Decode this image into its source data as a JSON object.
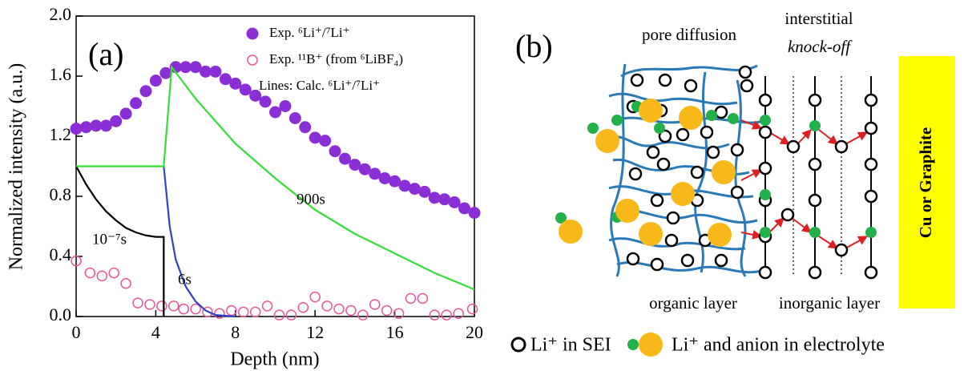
{
  "chart_data": {
    "type": "scatter",
    "panel_label": "(a)",
    "x_label": "Depth (nm)",
    "y_label": "Normalized intensity (a.u.)",
    "xlim": [
      0,
      20
    ],
    "xticks": [
      0,
      4,
      8,
      12,
      16,
      20
    ],
    "ylim": [
      0,
      2
    ],
    "yticks": [
      {
        "value": 0,
        "label": "0.0"
      },
      0.4,
      0.8,
      1.2,
      1.6,
      {
        "value": 2,
        "label": "2.0"
      }
    ],
    "legend_note": "Lines: Calc. ⁶Li⁺/⁷Li⁺",
    "series": [
      {
        "name": "Exp. ⁶Li⁺/⁷Li⁺",
        "style": "filled",
        "color": "#8a2fd6",
        "x": [
          0,
          0.5,
          1,
          1.5,
          2,
          2.5,
          3,
          3.5,
          4,
          4.5,
          5,
          5.5,
          6,
          6.5,
          7,
          7.5,
          8,
          8.5,
          9,
          9.5,
          10,
          10.5,
          11,
          11.5,
          12,
          12.5,
          13,
          13.5,
          14,
          14.5,
          15,
          15.5,
          16,
          16.5,
          17,
          17.5,
          18,
          18.5,
          19,
          19.5,
          20
        ],
        "values": [
          1.25,
          1.26,
          1.27,
          1.27,
          1.3,
          1.35,
          1.42,
          1.5,
          1.57,
          1.62,
          1.66,
          1.66,
          1.66,
          1.63,
          1.63,
          1.58,
          1.55,
          1.51,
          1.47,
          1.43,
          1.36,
          1.4,
          1.32,
          1.26,
          1.19,
          1.17,
          1.1,
          1.05,
          1.01,
          0.98,
          0.95,
          0.92,
          0.9,
          0.87,
          0.85,
          0.83,
          0.79,
          0.78,
          0.76,
          0.72,
          0.69
        ]
      },
      {
        "name": "Exp. ¹¹B⁺ (from ⁶LiBF₄)",
        "style": "open",
        "color": "#e8559a",
        "x": [
          0,
          0.7,
          1.3,
          1.9,
          2.5,
          3.1,
          3.7,
          4.3,
          4.9,
          5.4,
          6.0,
          6.6,
          7.2,
          7.8,
          8.4,
          9.0,
          9.6,
          10.2,
          10.8,
          11.4,
          12.0,
          12.6,
          13.2,
          13.8,
          14.4,
          15.0,
          15.6,
          16.2,
          16.8,
          17.4,
          18.0,
          18.6,
          19.2,
          19.9
        ],
        "values": [
          0.37,
          0.29,
          0.27,
          0.29,
          0.22,
          0.09,
          0.08,
          0.07,
          0.07,
          0.05,
          0.05,
          0.03,
          0.02,
          0.04,
          0.03,
          0.03,
          0.07,
          0.01,
          0.01,
          0.06,
          0.13,
          0.07,
          0.05,
          0.04,
          0.01,
          0.08,
          0.04,
          0.02,
          0.12,
          0.12,
          0.01,
          0.01,
          0.02,
          0.05
        ]
      },
      {
        "name": "10⁻⁷s",
        "style": "line",
        "color": "#000000",
        "x": [
          0,
          0.5,
          1,
          1.5,
          2,
          2.5,
          3,
          3.5,
          4,
          4.4,
          4.4
        ],
        "values": [
          1.0,
          0.88,
          0.78,
          0.7,
          0.64,
          0.59,
          0.56,
          0.54,
          0.53,
          0.53,
          0
        ]
      },
      {
        "name": "6s",
        "style": "line",
        "color": "#3340cc",
        "x": [
          4.4,
          4.7,
          5,
          5.5,
          6,
          6.5,
          7,
          8
        ],
        "values": [
          1.0,
          0.6,
          0.38,
          0.2,
          0.1,
          0.04,
          0.01,
          0
        ]
      },
      {
        "name": "900s",
        "style": "line",
        "color": "#33e033",
        "x": [
          0,
          4.4,
          4.8,
          6,
          8,
          10,
          12,
          14,
          16,
          18,
          20
        ],
        "values": [
          1.0,
          1.0,
          1.66,
          1.45,
          1.15,
          0.92,
          0.71,
          0.55,
          0.42,
          0.29,
          0.18
        ]
      }
    ]
  },
  "diagram": {
    "panel_label": "(b)",
    "pore_label": "pore diffusion",
    "interstitial_label": "interstitial",
    "knockoff_label": "knock-off",
    "substrate_label": "Cu or Graphite",
    "organic_label": "organic layer",
    "inorganic_label": "inorganic layer",
    "legend_sei": "Li⁺ in SEI",
    "legend_electrolyte": "Li⁺ and anion in electrolyte"
  }
}
